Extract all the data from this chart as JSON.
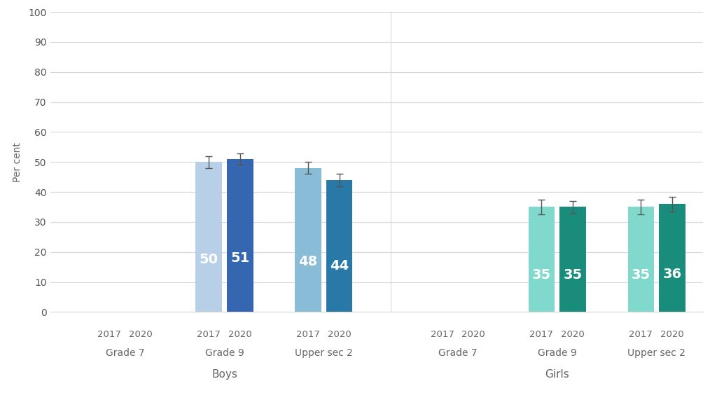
{
  "ylabel": "Per cent",
  "ylim": [
    0,
    100
  ],
  "yticks": [
    0,
    10,
    20,
    30,
    40,
    50,
    60,
    70,
    80,
    90,
    100
  ],
  "background_color": "#ffffff",
  "grid_color": "#d8d8d8",
  "groups": [
    {
      "label": "Grade 7",
      "section": "Boys",
      "bars": [
        {
          "year": "2017",
          "value": null,
          "color": "#b8cfe8",
          "err": null
        },
        {
          "year": "2020",
          "value": null,
          "color": "#b8cfe8",
          "err": null
        }
      ]
    },
    {
      "label": "Grade 9",
      "section": "Boys",
      "bars": [
        {
          "year": "2017",
          "value": 50,
          "color": "#b8cfe8",
          "err": 2.0
        },
        {
          "year": "2020",
          "value": 51,
          "color": "#3467b0",
          "err": 1.8
        }
      ]
    },
    {
      "label": "Upper sec 2",
      "section": "Boys",
      "bars": [
        {
          "year": "2017",
          "value": 48,
          "color": "#89bcd6",
          "err": 2.0
        },
        {
          "year": "2020",
          "value": 44,
          "color": "#2878a8",
          "err": 2.0
        }
      ]
    },
    {
      "label": "Grade 7",
      "section": "Girls",
      "bars": [
        {
          "year": "2017",
          "value": null,
          "color": "#8addd0",
          "err": null
        },
        {
          "year": "2020",
          "value": null,
          "color": "#8addd0",
          "err": null
        }
      ]
    },
    {
      "label": "Grade 9",
      "section": "Girls",
      "bars": [
        {
          "year": "2017",
          "value": 35,
          "color": "#80d9cc",
          "err": 2.5
        },
        {
          "year": "2020",
          "value": 35,
          "color": "#1a8c7c",
          "err": 2.0
        }
      ]
    },
    {
      "label": "Upper sec 2",
      "section": "Girls",
      "bars": [
        {
          "year": "2017",
          "value": 35,
          "color": "#80d9cc",
          "err": 2.5
        },
        {
          "year": "2020",
          "value": 36,
          "color": "#1a8c7c",
          "err": 2.5
        }
      ]
    }
  ],
  "bar_value_fontsize": 14,
  "bar_value_color": "#ffffff",
  "year_label_fontsize": 9.5,
  "group_label_fontsize": 10,
  "section_label_fontsize": 11,
  "ylabel_fontsize": 10,
  "tick_fontsize": 10,
  "tick_color": "#555555",
  "label_color": "#666666",
  "errorbar_color": "#555555"
}
